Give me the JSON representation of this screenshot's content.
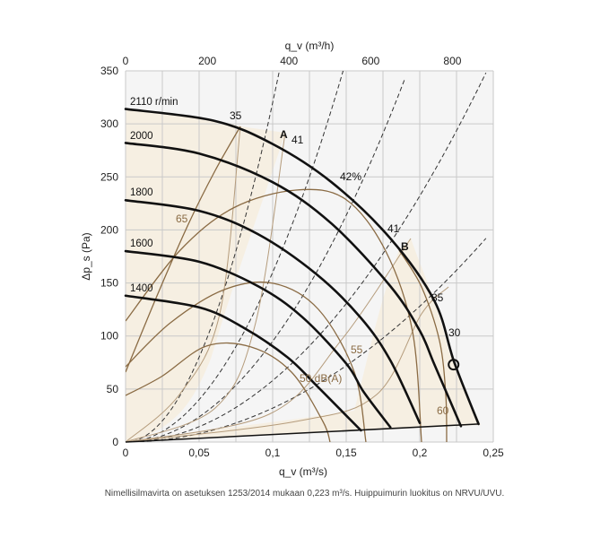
{
  "chart_data": {
    "type": "line",
    "title": "",
    "xlabel": "q_v (m³/s)",
    "x2label": "q_v (m³/h)",
    "ylabel": "Δp_s (Pa)",
    "xlim": [
      0,
      0.25
    ],
    "x2lim": [
      0,
      900
    ],
    "ylim": [
      0,
      350
    ],
    "grid": true,
    "xticks": [
      "0",
      "0,05",
      "0,1",
      "0,15",
      "0,2",
      "0,25"
    ],
    "x2ticks": [
      "0",
      "200",
      "400",
      "600",
      "800"
    ],
    "yticks": [
      "0",
      "50",
      "100",
      "150",
      "200",
      "250",
      "300",
      "350"
    ],
    "fan_curves": [
      {
        "name": "2110 r/min",
        "points": [
          [
            0,
            314
          ],
          [
            0.06,
            303
          ],
          [
            0.1,
            281
          ],
          [
            0.14,
            245
          ],
          [
            0.18,
            192
          ],
          [
            0.21,
            133
          ],
          [
            0.2235,
            75
          ],
          [
            0.24,
            17
          ]
        ]
      },
      {
        "name": "2000",
        "points": [
          [
            0,
            282
          ],
          [
            0.05,
            272
          ],
          [
            0.1,
            245
          ],
          [
            0.14,
            206
          ],
          [
            0.18,
            147
          ],
          [
            0.2,
            105
          ],
          [
            0.21,
            73
          ],
          [
            0.228,
            15
          ]
        ]
      },
      {
        "name": "1800",
        "points": [
          [
            0,
            228
          ],
          [
            0.05,
            218
          ],
          [
            0.09,
            196
          ],
          [
            0.13,
            158
          ],
          [
            0.16,
            117
          ],
          [
            0.18,
            77
          ],
          [
            0.2,
            18
          ]
        ]
      },
      {
        "name": "1600",
        "points": [
          [
            0,
            180
          ],
          [
            0.05,
            170
          ],
          [
            0.09,
            147
          ],
          [
            0.12,
            118
          ],
          [
            0.15,
            74
          ],
          [
            0.162,
            47
          ],
          [
            0.18,
            14
          ]
        ]
      },
      {
        "name": "1400",
        "points": [
          [
            0,
            138
          ],
          [
            0.05,
            127
          ],
          [
            0.08,
            108
          ],
          [
            0.11,
            80
          ],
          [
            0.13,
            53
          ],
          [
            0.15,
            25
          ],
          [
            0.16,
            11
          ]
        ]
      }
    ],
    "system_line": {
      "points": [
        [
          0,
          0
        ],
        [
          0.24,
          17
        ]
      ]
    },
    "efficiency_labels": [
      "35",
      "41",
      "42%",
      "41",
      "35",
      "30"
    ],
    "sound_labels": [
      "65",
      "55",
      "50 dB(A)",
      "60"
    ],
    "zone_labels": [
      "A",
      "B"
    ],
    "nominal_point": {
      "x": 0.223,
      "y": 73
    }
  },
  "footnote": "Nimellisilmavirta on asetuksen 1253/2014 mukaan 0,223 m³/s. Huippuimurin luokitus on NRVU/UVU."
}
